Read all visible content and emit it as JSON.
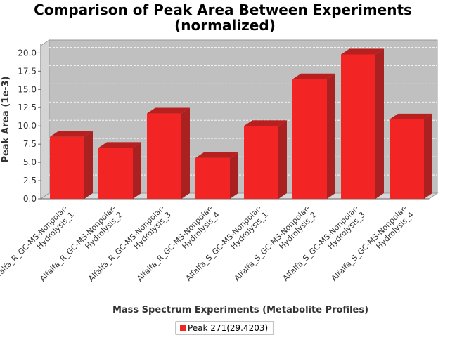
{
  "chart_data": {
    "type": "bar",
    "title": "Comparison of Peak Area Between Experiments",
    "subtitle": "(normalized)",
    "xlabel": "Mass Spectrum Experiments (Metabolite Profiles)",
    "ylabel": "Peak Area (1e-3)",
    "ylim": [
      0,
      21.0
    ],
    "yticks": [
      "0.0",
      "2.5",
      "5.0",
      "7.5",
      "10.0",
      "12.5",
      "15.0",
      "17.5",
      "20.0"
    ],
    "categories": [
      [
        "Alfalfa_R_GC-MS-Nonpolar-",
        "Hydrolysis_1"
      ],
      [
        "Alfalfa_R_GC-MS-Nonpolar-",
        "Hydrolysis_2"
      ],
      [
        "Alfalfa_R_GC-MS-Nonpolar-",
        "Hydrolysis_3"
      ],
      [
        "Alfalfa_R_GC-MS-Nonpolar-",
        "Hydrolysis_4"
      ],
      [
        "Alfalfa_S_GC-MS-Nonpolar-",
        "Hydrolysis_1"
      ],
      [
        "Alfalfa_S_GC-MS-Nonpolar-",
        "Hydrolysis_2"
      ],
      [
        "Alfalfa_S_GC-MS-Nonpolar-",
        "Hydrolysis_3"
      ],
      [
        "Alfalfa_S_GC-MS-Nonpolar-",
        "Hydrolysis_4"
      ]
    ],
    "series": [
      {
        "name": "Peak 271(29.4203)",
        "values": [
          8.5,
          7.0,
          11.7,
          5.6,
          10.0,
          16.4,
          19.8,
          10.9
        ]
      }
    ],
    "grid": true,
    "legend_position": "bottom",
    "colors": {
      "bar": "#f32424",
      "bar_top": "#b82020",
      "bar_side": "#a92121",
      "plot_bg": "#c0c0c0"
    }
  }
}
